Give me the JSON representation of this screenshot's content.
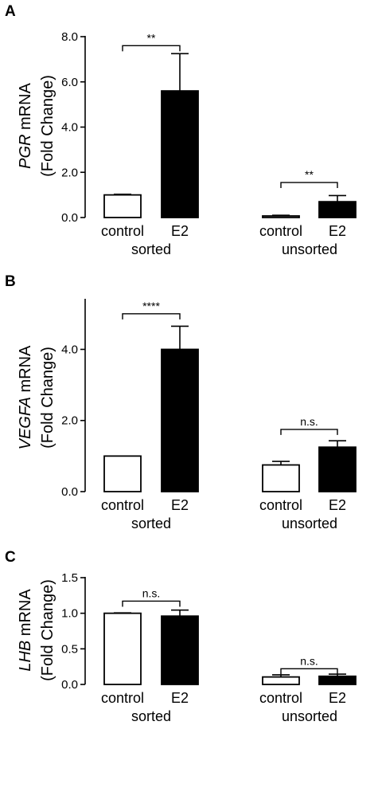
{
  "chart_data": [
    {
      "type": "bar",
      "panel_label": "A",
      "gene": "PGR",
      "ylabel_suffix": " mRNA",
      "ylabel_line2": "(Fold Change)",
      "ylim": [
        0,
        8
      ],
      "yticks": [
        0,
        2,
        4,
        6,
        8
      ],
      "ytick_labels": [
        "0.0",
        "2.0",
        "4.0",
        "6.0",
        "8.0"
      ],
      "groups": [
        "sorted",
        "unsorted"
      ],
      "categories": [
        "control",
        "E2",
        "control",
        "E2"
      ],
      "values": [
        1.0,
        5.6,
        0.07,
        0.7
      ],
      "errors": [
        0.03,
        1.65,
        0.03,
        0.27
      ],
      "fills": [
        "#ffffff",
        "#000000",
        "#ffffff",
        "#000000"
      ],
      "significance": [
        {
          "group": 0,
          "label": "**",
          "y": 7.6
        },
        {
          "group": 1,
          "label": "**",
          "y": 1.55
        }
      ]
    },
    {
      "type": "bar",
      "panel_label": "B",
      "gene": "VEGFA",
      "ylabel_suffix": " mRNA",
      "ylabel_line2": "(Fold Change)",
      "ylim": [
        0,
        5.4
      ],
      "yticks": [
        0,
        2,
        4
      ],
      "ytick_labels": [
        "0.0",
        "2.0",
        "4.0"
      ],
      "groups": [
        "sorted",
        "unsorted"
      ],
      "categories": [
        "control",
        "E2",
        "control",
        "E2"
      ],
      "values": [
        1.0,
        4.0,
        0.75,
        1.25
      ],
      "errors": [
        0.0,
        0.65,
        0.1,
        0.18
      ],
      "fills": [
        "#ffffff",
        "#000000",
        "#ffffff",
        "#000000"
      ],
      "significance": [
        {
          "group": 0,
          "label": "****",
          "y": 5.0
        },
        {
          "group": 1,
          "label": "n.s.",
          "y": 1.75
        }
      ]
    },
    {
      "type": "bar",
      "panel_label": "C",
      "gene": "LHB",
      "ylabel_suffix": " mRNA",
      "ylabel_line2": "(Fold Change)",
      "ylim": [
        0,
        1.5
      ],
      "yticks": [
        0,
        0.5,
        1.0,
        1.5
      ],
      "ytick_labels": [
        "0.0",
        "0.5",
        "1.0",
        "1.5"
      ],
      "groups": [
        "sorted",
        "unsorted"
      ],
      "categories": [
        "control",
        "E2",
        "control",
        "E2"
      ],
      "values": [
        1.0,
        0.96,
        0.105,
        0.115
      ],
      "errors": [
        0.005,
        0.085,
        0.03,
        0.03
      ],
      "fills": [
        "#ffffff",
        "#000000",
        "#ffffff",
        "#000000"
      ],
      "significance": [
        {
          "group": 0,
          "label": "n.s.",
          "y": 1.17
        },
        {
          "group": 1,
          "label": "n.s.",
          "y": 0.22
        }
      ]
    }
  ]
}
